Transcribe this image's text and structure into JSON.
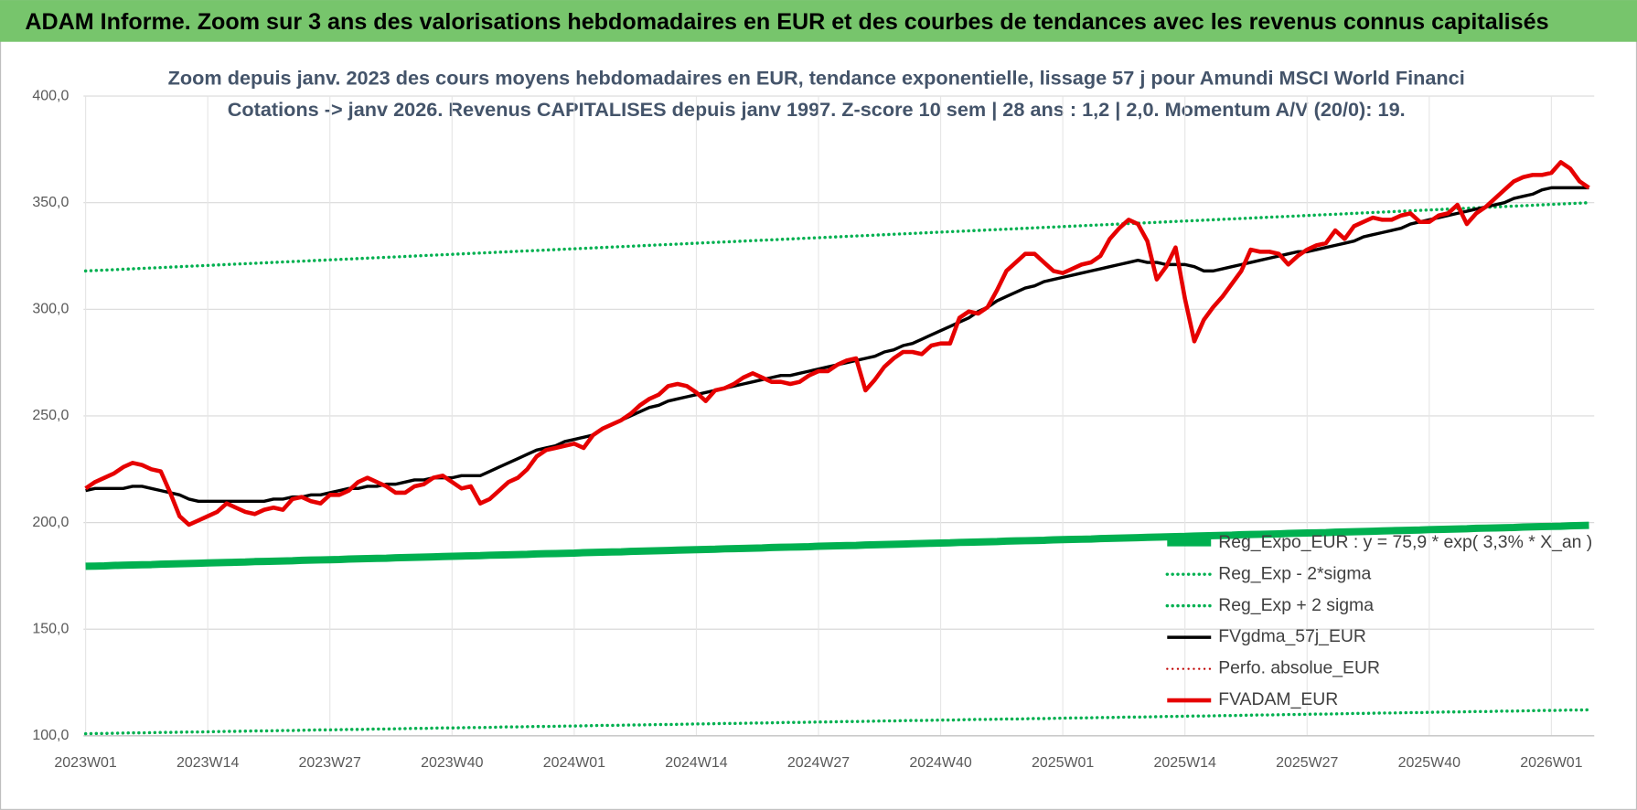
{
  "chart_data": {
    "type": "line",
    "title": "ADAM Informe. Zoom sur 3 ans des valorisations hebdomadaires en EUR et des courbes de tendances avec les revenus connus capitalisés",
    "subtitle": [
      "Zoom depuis janv. 2023 des cours moyens hebdomadaires en EUR, tendance exponentielle, lissage 57 j pour Amundi MSCI World Financi",
      "Cotations -> janv 2026. Revenus CAPITALISES depuis janv 1997. Z-score 10 sem | 28 ans : 1,2 | 2,0. Momentum A/V (20/0): 19."
    ],
    "categories": [
      "2023W01",
      null,
      null,
      null,
      null,
      null,
      null,
      null,
      null,
      null,
      null,
      null,
      null,
      "2023W14",
      null,
      null,
      null,
      null,
      null,
      null,
      null,
      null,
      null,
      null,
      null,
      null,
      "2023W27",
      null,
      null,
      null,
      null,
      null,
      null,
      null,
      null,
      null,
      null,
      null,
      null,
      "2023W40",
      null,
      null,
      null,
      null,
      null,
      null,
      null,
      null,
      null,
      null,
      null,
      null,
      "2024W01",
      null,
      null,
      null,
      null,
      null,
      null,
      null,
      null,
      null,
      null,
      null,
      null,
      "2024W14",
      null,
      null,
      null,
      null,
      null,
      null,
      null,
      null,
      null,
      null,
      null,
      null,
      "2024W27",
      null,
      null,
      null,
      null,
      null,
      null,
      null,
      null,
      null,
      null,
      null,
      null,
      "2024W40",
      null,
      null,
      null,
      null,
      null,
      null,
      null,
      null,
      null,
      null,
      null,
      null,
      "2025W01",
      null,
      null,
      null,
      null,
      null,
      null,
      null,
      null,
      null,
      null,
      null,
      null,
      "2025W14",
      null,
      null,
      null,
      null,
      null,
      null,
      null,
      null,
      null,
      null,
      null,
      null,
      "2025W27",
      null,
      null,
      null,
      null,
      null,
      null,
      null,
      null,
      null,
      null,
      null,
      null,
      "2025W40",
      null,
      null,
      null,
      null,
      null,
      null,
      null,
      null,
      null,
      null,
      null,
      null,
      "2026W01",
      null,
      null,
      null,
      null
    ],
    "ylim": [
      100,
      400
    ],
    "yticks": [
      {
        "value": 100,
        "label": "100,0"
      },
      {
        "value": 150,
        "label": "150,0"
      },
      {
        "value": 200,
        "label": "200,0"
      },
      {
        "value": 250,
        "label": "250,0"
      },
      {
        "value": 300,
        "label": "300,0"
      },
      {
        "value": 350,
        "label": "350,0"
      },
      {
        "value": 400,
        "label": "400,0"
      }
    ],
    "grid": true,
    "legend": "lower right",
    "series": [
      {
        "name": "Reg_Expo_EUR : y = 75,9 * exp( 3,3% *  X_an )",
        "color": "#00b050",
        "style": "solid",
        "values": [
          179.5,
          179.6,
          179.7,
          179.9,
          180,
          180.1,
          180.2,
          180.3,
          180.5,
          180.6,
          180.7,
          180.8,
          180.9,
          181.1,
          181.2,
          181.3,
          181.4,
          181.5,
          181.7,
          181.8,
          181.9,
          182,
          182.1,
          182.3,
          182.4,
          182.5,
          182.6,
          182.7,
          182.9,
          183,
          183.1,
          183.2,
          183.3,
          183.5,
          183.6,
          183.7,
          183.8,
          183.9,
          184.1,
          184.2,
          184.3,
          184.4,
          184.5,
          184.7,
          184.8,
          184.9,
          185,
          185.1,
          185.3,
          185.4,
          185.5,
          185.6,
          185.7,
          185.9,
          186,
          186.1,
          186.2,
          186.3,
          186.5,
          186.6,
          186.7,
          186.8,
          186.9,
          187.1,
          187.2,
          187.3,
          187.4,
          187.5,
          187.7,
          187.8,
          187.9,
          188,
          188.1,
          188.3,
          188.4,
          188.5,
          188.6,
          188.7,
          188.9,
          189,
          189.1,
          189.2,
          189.3,
          189.5,
          189.6,
          189.7,
          189.8,
          189.9,
          190.1,
          190.2,
          190.3,
          190.4,
          190.5,
          190.7,
          190.8,
          190.9,
          191,
          191.1,
          191.3,
          191.4,
          191.5,
          191.6,
          191.7,
          191.9,
          192,
          192.1,
          192.2,
          192.3,
          192.5,
          192.6,
          192.7,
          192.8,
          192.9,
          193.1,
          193.2,
          193.3,
          193.4,
          193.5,
          193.7,
          193.8,
          193.9,
          194,
          194.1,
          194.3,
          194.4,
          194.5,
          194.6,
          194.7,
          194.9,
          195,
          195.1,
          195.2,
          195.3,
          195.5,
          195.6,
          195.7,
          195.8,
          195.9,
          196.1,
          196.2,
          196.3,
          196.4,
          196.5,
          196.7,
          196.8,
          196.9,
          197,
          197.1,
          197.3,
          197.4,
          197.5,
          197.6,
          197.7,
          197.9,
          198,
          198.1,
          198.2,
          198.3,
          198.5,
          198.6,
          198.7
        ]
      },
      {
        "name": "Reg_Exp - 2*sigma",
        "color": "#00b050",
        "style": "dotted",
        "values": [
          101,
          101.1,
          101.1,
          101.2,
          101.3,
          101.4,
          101.4,
          101.5,
          101.6,
          101.6,
          101.7,
          101.8,
          101.8,
          101.9,
          102,
          102.1,
          102.1,
          102.2,
          102.3,
          102.3,
          102.4,
          102.5,
          102.5,
          102.6,
          102.7,
          102.8,
          102.8,
          102.9,
          103,
          103,
          103.1,
          103.2,
          103.2,
          103.3,
          103.4,
          103.5,
          103.5,
          103.6,
          103.7,
          103.7,
          103.8,
          103.9,
          103.9,
          104,
          104.1,
          104.2,
          104.2,
          104.3,
          104.4,
          104.4,
          104.5,
          104.6,
          104.6,
          104.7,
          104.8,
          104.9,
          104.9,
          105,
          105.1,
          105.1,
          105.2,
          105.3,
          105.3,
          105.4,
          105.5,
          105.6,
          105.6,
          105.7,
          105.8,
          105.8,
          105.9,
          106,
          106,
          106.1,
          106.2,
          106.3,
          106.3,
          106.4,
          106.5,
          106.5,
          106.6,
          106.7,
          106.7,
          106.8,
          106.9,
          107,
          107,
          107.1,
          107.2,
          107.2,
          107.3,
          107.4,
          107.4,
          107.5,
          107.6,
          107.7,
          107.7,
          107.8,
          107.9,
          107.9,
          108,
          108.1,
          108.1,
          108.2,
          108.3,
          108.4,
          108.4,
          108.5,
          108.6,
          108.6,
          108.7,
          108.8,
          108.8,
          108.9,
          109,
          109.1,
          109.1,
          109.2,
          109.3,
          109.3,
          109.4,
          109.5,
          109.5,
          109.6,
          109.7,
          109.8,
          109.8,
          109.9,
          110,
          110,
          110.1,
          110.2,
          110.2,
          110.3,
          110.4,
          110.5,
          110.5,
          110.6,
          110.7,
          110.7,
          110.8,
          110.9,
          110.9,
          111,
          111.1,
          111.2,
          111.2,
          111.3,
          111.4,
          111.4,
          111.5,
          111.6,
          111.6,
          111.7,
          111.8,
          111.9,
          111.9,
          112,
          112.1,
          112.1,
          112.2
        ]
      },
      {
        "name": "Reg_Exp + 2 sigma",
        "color": "#00b050",
        "style": "dotted",
        "values": [
          318,
          318.2,
          318.4,
          318.6,
          318.8,
          319,
          319.2,
          319.4,
          319.6,
          319.8,
          320,
          320.2,
          320.4,
          320.6,
          320.8,
          321,
          321.2,
          321.4,
          321.6,
          321.8,
          322,
          322.2,
          322.4,
          322.6,
          322.8,
          323,
          323.2,
          323.4,
          323.6,
          323.8,
          324,
          324.2,
          324.4,
          324.6,
          324.8,
          325,
          325.2,
          325.4,
          325.6,
          325.8,
          326,
          326.2,
          326.4,
          326.6,
          326.8,
          327,
          327.2,
          327.4,
          327.6,
          327.8,
          328,
          328.2,
          328.4,
          328.6,
          328.8,
          329,
          329.2,
          329.4,
          329.6,
          329.8,
          330,
          330.2,
          330.4,
          330.6,
          330.8,
          331,
          331.2,
          331.4,
          331.6,
          331.8,
          332,
          332.2,
          332.4,
          332.6,
          332.8,
          333,
          333.2,
          333.4,
          333.6,
          333.8,
          334,
          334.2,
          334.4,
          334.6,
          334.8,
          335,
          335.2,
          335.4,
          335.6,
          335.8,
          336,
          336.2,
          336.4,
          336.6,
          336.8,
          337,
          337.2,
          337.4,
          337.6,
          337.8,
          338,
          338.2,
          338.4,
          338.6,
          338.8,
          339,
          339.2,
          339.4,
          339.6,
          339.8,
          340,
          340.2,
          340.4,
          340.6,
          340.8,
          341,
          341.2,
          341.4,
          341.6,
          341.8,
          342,
          342.2,
          342.4,
          342.6,
          342.8,
          343,
          343.2,
          343.4,
          343.6,
          343.8,
          344,
          344.2,
          344.4,
          344.6,
          344.8,
          345,
          345.2,
          345.4,
          345.6,
          345.8,
          346,
          346.2,
          346.4,
          346.6,
          346.8,
          347,
          347.2,
          347.4,
          347.6,
          347.8,
          348,
          348.2,
          348.4,
          348.6,
          348.8,
          349,
          349.2,
          349.4,
          349.6,
          349.8,
          350
        ]
      },
      {
        "name": "FVgdma_57j_EUR",
        "color": "#000000",
        "style": "solid",
        "values": [
          215,
          216,
          216,
          216,
          216,
          217,
          217,
          216,
          215,
          214,
          213,
          211,
          210,
          210,
          210,
          210,
          210,
          210,
          210,
          210,
          211,
          211,
          212,
          212,
          213,
          213,
          214,
          215,
          216,
          216,
          217,
          217,
          218,
          218,
          219,
          220,
          220,
          221,
          221,
          221,
          222,
          222,
          222,
          224,
          226,
          228,
          230,
          232,
          234,
          235,
          236,
          238,
          239,
          240,
          241,
          244,
          246,
          248,
          250,
          252,
          254,
          255,
          257,
          258,
          259,
          260,
          261,
          262,
          263,
          264,
          265,
          266,
          267,
          268,
          269,
          269,
          270,
          271,
          272,
          273,
          274,
          275,
          276,
          277,
          278,
          280,
          281,
          283,
          284,
          286,
          288,
          290,
          292,
          294,
          296,
          299,
          301,
          304,
          306,
          308,
          310,
          311,
          313,
          314,
          315,
          316,
          317,
          318,
          319,
          320,
          321,
          322,
          323,
          322,
          322,
          321,
          321,
          321,
          320,
          318,
          318,
          319,
          320,
          321,
          322,
          323,
          324,
          325,
          326,
          327,
          327,
          328,
          329,
          330,
          331,
          332,
          334,
          335,
          336,
          337,
          338,
          340,
          341,
          342,
          343,
          344,
          345,
          346,
          347,
          348,
          349,
          350,
          352,
          353,
          354,
          356,
          357,
          357,
          357,
          357,
          357
        ]
      },
      {
        "name": "Perfo. absolue_EUR",
        "color": "#c00000",
        "style": "dotted",
        "values": [
          null,
          null,
          null,
          null,
          null,
          null,
          null,
          null,
          null,
          null,
          null,
          null,
          null,
          null,
          null,
          null,
          null,
          null,
          null,
          null,
          null,
          null,
          null,
          null,
          null,
          null,
          null,
          null,
          null,
          null,
          null,
          null,
          null,
          null,
          null,
          null,
          null,
          null,
          null,
          null,
          null,
          null,
          null,
          null,
          null,
          null,
          null,
          null,
          null,
          null,
          null,
          null,
          null,
          null,
          null,
          null,
          null,
          null,
          null,
          null,
          null,
          null,
          null,
          null,
          null,
          null,
          null,
          null,
          null,
          null,
          null,
          null,
          null,
          null,
          null,
          null,
          null,
          null,
          null,
          null,
          null,
          null,
          null,
          null,
          null,
          null,
          null,
          null,
          null,
          null,
          null,
          null,
          null,
          null,
          null,
          null,
          null,
          null,
          null,
          null,
          null,
          null,
          null,
          null,
          null,
          null,
          null,
          null,
          null,
          null,
          null,
          null,
          null,
          null,
          null,
          null,
          null,
          null,
          null,
          null,
          null,
          null,
          null,
          null,
          null,
          null,
          null,
          null,
          null,
          null,
          null,
          null,
          null,
          null,
          null,
          null,
          null,
          null,
          null,
          null,
          null,
          null,
          null,
          null,
          null,
          null,
          null,
          null,
          null,
          null,
          null,
          null,
          null,
          null,
          null,
          null,
          null,
          null,
          null,
          null,
          null
        ]
      },
      {
        "name": "FVADAM_EUR",
        "color": "#e60000",
        "style": "solid",
        "values": [
          216,
          219,
          221,
          223,
          226,
          228,
          227,
          225,
          224,
          214,
          203,
          199,
          201,
          203,
          205,
          209,
          207,
          205,
          204,
          206,
          207,
          206,
          211,
          212,
          210,
          209,
          213,
          213,
          215,
          219,
          221,
          219,
          217,
          214,
          214,
          217,
          218,
          221,
          222,
          219,
          216,
          217,
          209,
          211,
          215,
          219,
          221,
          225,
          231,
          234,
          235,
          236,
          237,
          235,
          241,
          244,
          246,
          248,
          251,
          255,
          258,
          260,
          264,
          265,
          264,
          261,
          257,
          262,
          263,
          265,
          268,
          270,
          268,
          266,
          266,
          265,
          266,
          269,
          271,
          271,
          274,
          276,
          277,
          262,
          267,
          273,
          277,
          280,
          280,
          279,
          283,
          284,
          284,
          296,
          299,
          298,
          301,
          309,
          318,
          322,
          326,
          326,
          322,
          318,
          317,
          319,
          321,
          322,
          325,
          333,
          338,
          342,
          340,
          332,
          314,
          320,
          329,
          305,
          285,
          295,
          301,
          306,
          312,
          318,
          328,
          327,
          327,
          326,
          321,
          325,
          328,
          330,
          331,
          337,
          333,
          339,
          341,
          343,
          342,
          342,
          344,
          345,
          341,
          341,
          344,
          345,
          349,
          340,
          345,
          348,
          352,
          356,
          360,
          362,
          363,
          363,
          364,
          369,
          366,
          360,
          357
        ]
      }
    ]
  }
}
